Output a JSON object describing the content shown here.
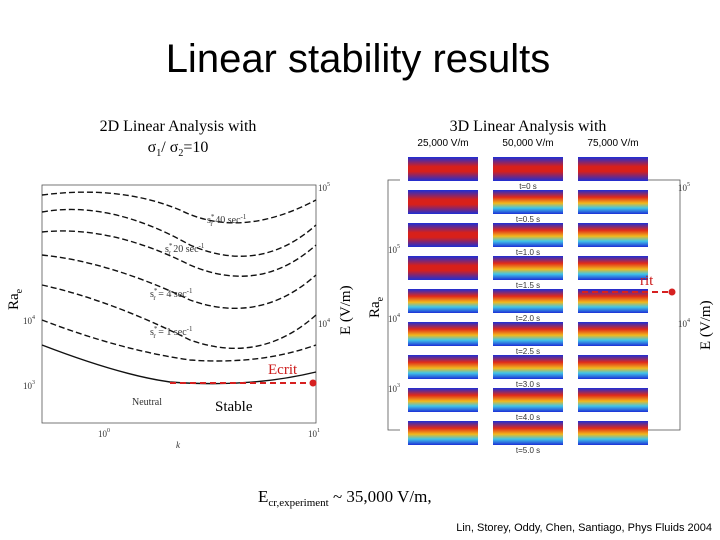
{
  "title": "Linear stability results",
  "left": {
    "heading": "2D Linear Analysis with",
    "ratio": {
      "s1": "σ",
      "i1": "1",
      "mid": "/ σ",
      "i2": "2",
      "tail": "=10"
    },
    "y_label": {
      "base": "Ra",
      "sub": "e"
    },
    "y2_label": "E (V/m)",
    "x_label": "k",
    "yticks": [
      {
        "base": "10",
        "exp": "4"
      },
      {
        "base": "10",
        "exp": "3"
      }
    ],
    "y2ticks": [
      {
        "base": "10",
        "exp": "5"
      },
      {
        "base": "10",
        "exp": "4"
      }
    ],
    "xticks": [
      {
        "base": "10",
        "exp": "0"
      },
      {
        "base": "10",
        "exp": "1"
      }
    ],
    "curves": [
      {
        "s": "s",
        "sup": "*",
        "sub": "r",
        "eq": " 40 sec",
        "exp": "-1"
      },
      {
        "s": "s",
        "sup": "*",
        "sub": "r",
        "eq": " 20 sec",
        "exp": "-1"
      },
      {
        "s": "s",
        "sup": "*",
        "sub": "r",
        "eq": " = 4 sec",
        "exp": "-1"
      },
      {
        "s": "s",
        "sup": "*",
        "sub": "r",
        "eq": " = 1 sec",
        "exp": "-1"
      }
    ],
    "neutral": "Neutral",
    "ecrit": "Ecrit",
    "stable": "Stable"
  },
  "right": {
    "heading": "3D Linear Analysis with",
    "columns": [
      "25,000 V/m",
      "50,000 V/m",
      "75,000 V/m"
    ],
    "times": [
      "t=0 s",
      "t=0.5 s",
      "t=1.0 s",
      "t=1.5 s",
      "t=2.0 s",
      "t=2.5 s",
      "t=3.0 s",
      "t=4.0 s",
      "t=5.0 s"
    ],
    "y_label": {
      "base": "Ra",
      "sub": "e"
    },
    "y2_label": "E (V/m)",
    "yticks": [
      {
        "base": "10",
        "exp": "5"
      },
      {
        "base": "10",
        "exp": "4"
      },
      {
        "base": "10",
        "exp": "3"
      }
    ],
    "y2ticks": [
      {
        "base": "10",
        "exp": "5"
      },
      {
        "base": "10",
        "exp": "4"
      }
    ],
    "ecrit_partial": "rit"
  },
  "footer": {
    "base": "E",
    "sub": "cr,experiment",
    "tail": " ~ 35,000 V/m,"
  },
  "citation": "Lin, Storey, Oddy, Chen, Santiago, Phys Fluids 2004"
}
